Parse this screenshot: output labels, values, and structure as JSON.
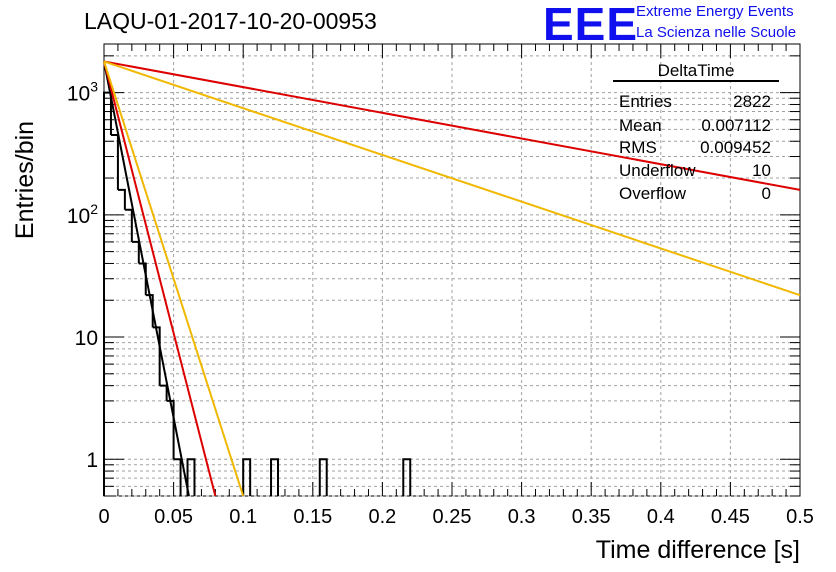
{
  "header": {
    "run_title": "LAQU-01-2017-10-20-00953",
    "logo_text": "EEE",
    "logo_line1": "Extreme Energy Events",
    "logo_line2": "La Scienza nelle Scuole"
  },
  "stats_box": {
    "title": "DeltaTime",
    "rows": [
      {
        "label": "Entries",
        "value": "2822"
      },
      {
        "label": "Mean",
        "value": "0.007112"
      },
      {
        "label": "RMS",
        "value": "0.009452"
      },
      {
        "label": "Underflow",
        "value": "10"
      },
      {
        "label": "Overflow",
        "value": "0"
      }
    ]
  },
  "colors": {
    "histogram": "#000000",
    "fit_black": "#000000",
    "fit_red": "#dd0000",
    "fit_yellow": "#f0b800",
    "grid": "#a0a0a0",
    "logo": "#1010ee"
  },
  "chart_data": {
    "type": "histogram",
    "title": "LAQU-01-2017-10-20-00953",
    "xlabel": "Time difference [s]",
    "ylabel": "Entries/bin",
    "xlim": [
      0,
      0.5
    ],
    "ylim": [
      0.5,
      2500
    ],
    "yscale": "log",
    "grid": true,
    "legend_position": "top-right",
    "x_ticks": [
      0,
      0.05,
      0.1,
      0.15,
      0.2,
      0.25,
      0.3,
      0.35,
      0.4,
      0.45,
      0.5
    ],
    "x_tick_labels": [
      "0",
      "0.05",
      "0.1",
      "0.15",
      "0.2",
      "0.25",
      "0.3",
      "0.35",
      "0.4",
      "0.45",
      "0.5"
    ],
    "y_tick_labels": [
      {
        "value": 1,
        "base": "1",
        "exp": ""
      },
      {
        "value": 10,
        "base": "10",
        "exp": ""
      },
      {
        "value": 100,
        "base": "10",
        "exp": "2"
      },
      {
        "value": 1000,
        "base": "10",
        "exp": "3"
      }
    ],
    "bin_width": 0.005,
    "histogram": [
      {
        "x": 0.0,
        "count": 1000
      },
      {
        "x": 0.005,
        "count": 450
      },
      {
        "x": 0.01,
        "count": 160
      },
      {
        "x": 0.015,
        "count": 110
      },
      {
        "x": 0.02,
        "count": 60
      },
      {
        "x": 0.025,
        "count": 40
      },
      {
        "x": 0.03,
        "count": 22
      },
      {
        "x": 0.035,
        "count": 12
      },
      {
        "x": 0.04,
        "count": 4
      },
      {
        "x": 0.045,
        "count": 3
      },
      {
        "x": 0.05,
        "count": 1
      },
      {
        "x": 0.055,
        "count": 0
      },
      {
        "x": 0.06,
        "count": 1
      },
      {
        "x": 0.1,
        "count": 1
      },
      {
        "x": 0.12,
        "count": 1
      },
      {
        "x": 0.155,
        "count": 1
      },
      {
        "x": 0.215,
        "count": 1
      }
    ],
    "fits": [
      {
        "name": "fit-black",
        "color": "#000000",
        "points": [
          [
            0.0,
            1800
          ],
          [
            0.061,
            0.5
          ]
        ]
      },
      {
        "name": "fit-red",
        "color": "#dd0000",
        "points": [
          [
            0.0,
            1800
          ],
          [
            0.08,
            0.5
          ]
        ]
      },
      {
        "name": "fit-yellow",
        "color": "#f0b800",
        "points": [
          [
            0.0,
            1800
          ],
          [
            0.1,
            0.5
          ]
        ]
      },
      {
        "name": "fit-red-slow",
        "color": "#dd0000",
        "points": [
          [
            0.0,
            1800
          ],
          [
            0.5,
            160
          ]
        ]
      },
      {
        "name": "fit-yellow-slow",
        "color": "#f0b800",
        "points": [
          [
            0.0,
            1800
          ],
          [
            0.5,
            22
          ]
        ]
      }
    ]
  }
}
